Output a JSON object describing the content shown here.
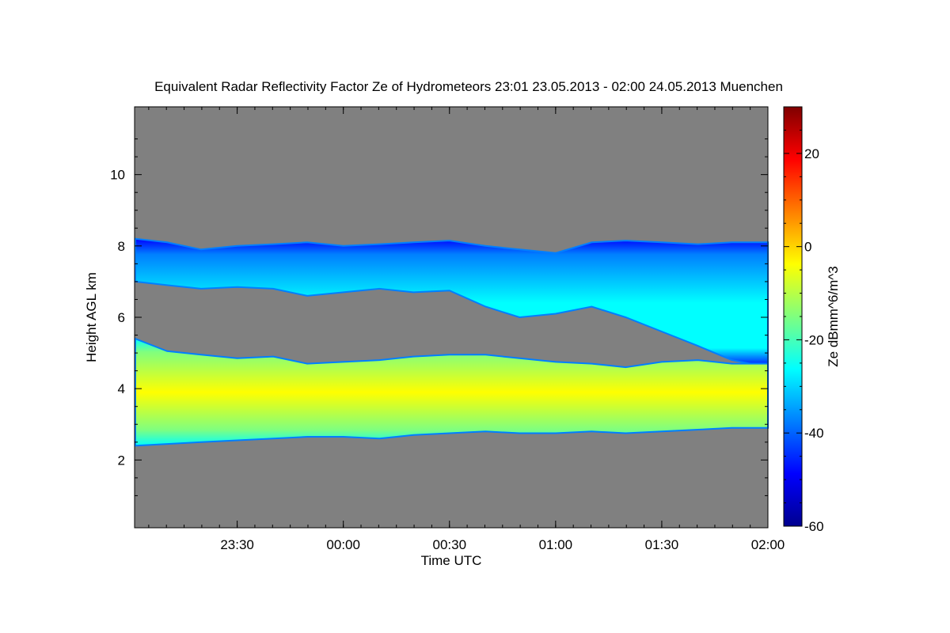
{
  "chart_data": {
    "type": "heatmap",
    "title": "Equivalent Radar Reflectivity Factor Ze of Hydrometeors   23:01 23.05.2013 - 02:00 24.05.2013 Muenchen",
    "xlabel": "Time UTC",
    "ylabel": "Height AGL km",
    "colorbar_label": "Ze dBmm^6/m^3",
    "x_range_hours": [
      23.0167,
      26.0
    ],
    "x_ticks": [
      {
        "value": 23.5,
        "label": "23:30"
      },
      {
        "value": 24.0,
        "label": "00:00"
      },
      {
        "value": 24.5,
        "label": "00:30"
      },
      {
        "value": 25.0,
        "label": "01:00"
      },
      {
        "value": 25.5,
        "label": "01:30"
      },
      {
        "value": 26.0,
        "label": "02:00"
      }
    ],
    "ylim": [
      0.1,
      11.9
    ],
    "y_ticks": [
      2,
      4,
      6,
      8,
      10
    ],
    "y_tick_labels": [
      "2",
      "4",
      "6",
      "8",
      "10"
    ],
    "colorbar_range": [
      -60,
      30
    ],
    "colorbar_ticks": [
      -60,
      -40,
      -20,
      0,
      20
    ],
    "colorbar_tick_labels": [
      "-60",
      "-40",
      "-20",
      "0",
      "20"
    ],
    "no_data_color": "#808080",
    "colormap": [
      "#00008f",
      "#0000ff",
      "#007fff",
      "#00ffff",
      "#7fff7f",
      "#ffff00",
      "#ff7f00",
      "#ff0000",
      "#800000"
    ],
    "layers": [
      {
        "name": "upper cloud layer",
        "times": [
          23.02,
          23.17,
          23.33,
          23.5,
          23.67,
          23.83,
          24.0,
          24.17,
          24.33,
          24.5,
          24.67,
          24.83,
          25.0,
          25.17,
          25.33,
          25.5,
          25.67,
          25.83,
          26.0
        ],
        "top_km": [
          8.2,
          8.1,
          7.9,
          8.0,
          8.05,
          8.1,
          8.0,
          8.05,
          8.1,
          8.15,
          8.0,
          7.9,
          7.8,
          8.1,
          8.15,
          8.1,
          8.05,
          8.1,
          8.1
        ],
        "base_km": [
          7.0,
          6.9,
          6.8,
          6.85,
          6.8,
          6.6,
          6.7,
          6.8,
          6.7,
          6.75,
          6.3,
          6.0,
          6.1,
          6.3,
          6.0,
          5.6,
          5.2,
          4.8,
          4.6
        ],
        "ze_mean_dbz": -25
      },
      {
        "name": "lower cloud layer",
        "times": [
          23.02,
          23.17,
          23.33,
          23.5,
          23.67,
          23.83,
          24.0,
          24.17,
          24.33,
          24.5,
          24.67,
          24.83,
          25.0,
          25.17,
          25.33,
          25.5,
          25.67,
          25.83,
          26.0
        ],
        "top_km": [
          5.4,
          5.05,
          4.95,
          4.85,
          4.9,
          4.7,
          4.75,
          4.8,
          4.9,
          4.95,
          4.95,
          4.85,
          4.75,
          4.7,
          4.6,
          4.75,
          4.8,
          4.7,
          4.7
        ],
        "base_km": [
          2.4,
          2.45,
          2.5,
          2.55,
          2.6,
          2.65,
          2.65,
          2.6,
          2.7,
          2.75,
          2.8,
          2.75,
          2.75,
          2.8,
          2.75,
          2.8,
          2.85,
          2.9,
          2.9
        ],
        "ze_mean_dbz": -8
      }
    ]
  }
}
